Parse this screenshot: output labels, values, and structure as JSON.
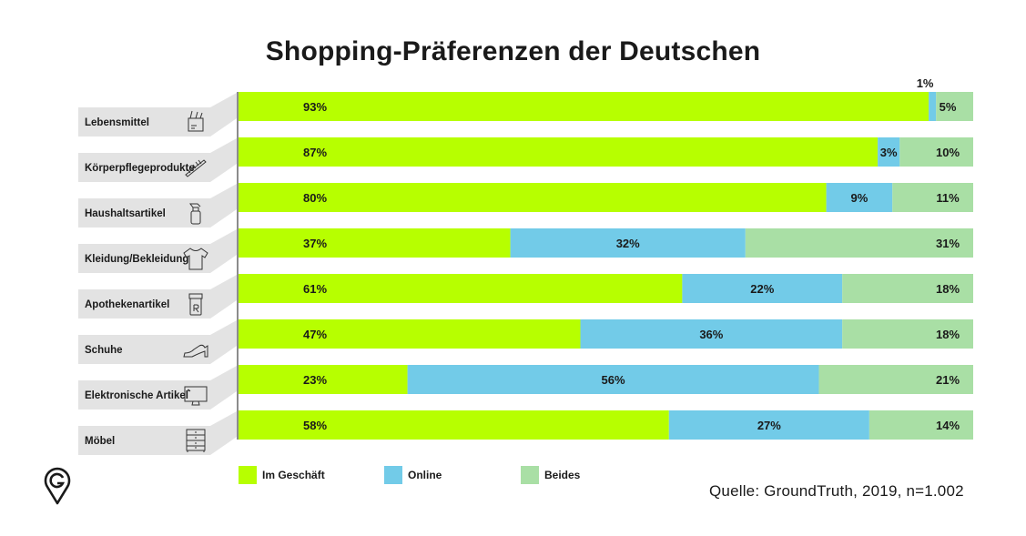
{
  "title": "Shopping-Präferenzen der Deutschen",
  "source": "Quelle: GroundTruth, 2019, n=1.002",
  "colors": {
    "im_geschaeft": "#b7ff00",
    "online": "#72cbe8",
    "beides": "#a9dfa5",
    "label_bg": "#e3e3e3"
  },
  "legend": [
    {
      "label": "Im Geschäft",
      "color": "#b7ff00"
    },
    {
      "label": "Online",
      "color": "#72cbe8"
    },
    {
      "label": "Beides",
      "color": "#a9dfa5"
    }
  ],
  "chart_data": {
    "type": "bar",
    "orientation": "horizontal",
    "stacked": true,
    "title": "Shopping-Präferenzen der Deutschen",
    "categories": [
      "Lebensmittel",
      "Körperpflegeprodukte",
      "Haushaltsartikel",
      "Kleidung/Bekleidung",
      "Apothekenartikel",
      "Schuhe",
      "Elektronische Artikel",
      "Möbel"
    ],
    "category_icons": [
      "grocery-bag-icon",
      "comb-icon",
      "spray-bottle-icon",
      "tshirt-icon",
      "pill-bottle-icon",
      "shoe-icon",
      "monitor-icon",
      "dresser-icon"
    ],
    "series": [
      {
        "name": "Im Geschäft",
        "values": [
          93,
          87,
          80,
          37,
          61,
          47,
          23,
          58
        ]
      },
      {
        "name": "Online",
        "values": [
          1,
          3,
          9,
          32,
          22,
          36,
          56,
          27
        ]
      },
      {
        "name": "Beides",
        "values": [
          5,
          10,
          11,
          31,
          18,
          18,
          21,
          14
        ]
      }
    ],
    "value_labels": [
      [
        "93%",
        "1%",
        "5%"
      ],
      [
        "87%",
        "3%",
        "10%"
      ],
      [
        "80%",
        "9%",
        "11%"
      ],
      [
        "37%",
        "32%",
        "31%"
      ],
      [
        "61%",
        "22%",
        "18%"
      ],
      [
        "47%",
        "36%",
        "18%"
      ],
      [
        "23%",
        "56%",
        "21%"
      ],
      [
        "58%",
        "27%",
        "14%"
      ]
    ],
    "xlim": [
      0,
      100
    ],
    "legend_position": "bottom",
    "grid": false
  }
}
